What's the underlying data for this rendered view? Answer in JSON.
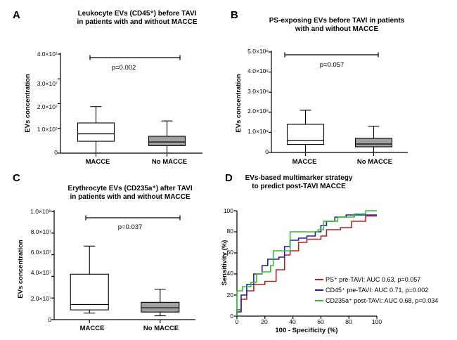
{
  "panel_letters": [
    "A",
    "B",
    "C",
    "D"
  ],
  "panelA": {
    "title_lines": [
      "Leukocyte EVs (CD45⁺) before TAVI",
      "in patients with and without MACCE"
    ],
    "ylabel": "EVs concentration",
    "ytick_labels": [
      "0",
      "1.0×10⁷",
      "2.0×10⁷",
      "3.0×10⁷",
      "4.0×10⁷"
    ],
    "pvalue": "p=0.002"
  },
  "panelB": {
    "title_lines": [
      "PS-exposing EVs before TAVI in patients",
      "with and without MACCE"
    ],
    "ylabel": "EVs concentration",
    "ytick_labels": [
      "0",
      "1.0×10⁸",
      "2.0×10⁸",
      "3.0×10⁸",
      "4.0×10⁸",
      "5.0×10⁸"
    ],
    "pvalue": "p=0.057"
  },
  "panelC": {
    "title_lines": [
      "Erythrocyte EVs (CD235a⁺) after TAVI",
      "in patients with and without MACCE"
    ],
    "ylabel": "EVs concentration",
    "ytick_labels": [
      "0",
      "2.0×10⁷",
      "4.0×10⁷",
      "6.0×10⁷",
      "8.0×10⁷",
      "1.0×10⁸"
    ],
    "pvalue": "p=0.037"
  },
  "panelD": {
    "title_lines": [
      "EVs-based multimarker strategy",
      "to predict post-TAVI MACCE"
    ],
    "xlabel": "100 - Specificity (%)",
    "ylabel": "Sensitivity (%)",
    "tick_labels": [
      "0",
      "20",
      "40",
      "60",
      "80",
      "100"
    ],
    "legend": [
      "PS⁺ pre-TAVI: AUC 0.63, p=0.057",
      "CD45⁺ pre-TAVI: AUC 0.71, p=0.002",
      "CD235a⁺ post-TAVI: AUC 0.68, p=0.034"
    ]
  },
  "colors": {
    "macce_box": "#ffffff",
    "no_macce_box": "#a0a0a0",
    "roc_ps": "#b22222",
    "roc_cd45": "#1f1fa6",
    "roc_cd235a": "#2fbf2f"
  },
  "chart_data": [
    {
      "type": "box",
      "panel": "A",
      "categories": [
        "MACCE",
        "No MACCE"
      ],
      "ylim": [
        0,
        40000000
      ],
      "boxes": [
        {
          "category": "MACCE",
          "whisker_low": 0,
          "q1": 4800000,
          "median": 7800000,
          "q3": 12200000,
          "whisker_high": 18800000
        },
        {
          "category": "No MACCE",
          "whisker_low": 0,
          "q1": 3000000,
          "median": 4500000,
          "q3": 6800000,
          "whisker_high": 13000000
        }
      ]
    },
    {
      "type": "box",
      "panel": "B",
      "categories": [
        "MACCE",
        "No MACCE"
      ],
      "ylim": [
        0,
        500000000
      ],
      "boxes": [
        {
          "category": "MACCE",
          "whisker_low": 0,
          "q1": 40000000,
          "median": 60000000,
          "q3": 140000000,
          "whisker_high": 210000000
        },
        {
          "category": "No MACCE",
          "whisker_low": 0,
          "q1": 28000000,
          "median": 42000000,
          "q3": 70000000,
          "whisker_high": 130000000
        }
      ]
    },
    {
      "type": "box",
      "panel": "C",
      "categories": [
        "MACCE",
        "No MACCE"
      ],
      "ylim": [
        0,
        100000000
      ],
      "boxes": [
        {
          "category": "MACCE",
          "whisker_low": 6000000,
          "q1": 9000000,
          "median": 14000000,
          "q3": 42000000,
          "whisker_high": 68000000
        },
        {
          "category": "No MACCE",
          "whisker_low": 3500000,
          "q1": 7000000,
          "median": 11000000,
          "q3": 16000000,
          "whisker_high": 28000000
        }
      ]
    },
    {
      "type": "line",
      "panel": "D",
      "xlabel": "100 - Specificity (%)",
      "ylabel": "Sensitivity (%)",
      "xlim": [
        0,
        100
      ],
      "ylim": [
        0,
        100
      ],
      "series": [
        {
          "name": "PS⁺ pre-TAVI: AUC 0.63, p=0.057",
          "points": [
            [
              0,
              0
            ],
            [
              0,
              6
            ],
            [
              3,
              6
            ],
            [
              3,
              16
            ],
            [
              7,
              16
            ],
            [
              7,
              24
            ],
            [
              12,
              24
            ],
            [
              12,
              30
            ],
            [
              20,
              30
            ],
            [
              20,
              33
            ],
            [
              28,
              33
            ],
            [
              28,
              44
            ],
            [
              34,
              44
            ],
            [
              34,
              58
            ],
            [
              38,
              58
            ],
            [
              38,
              62
            ],
            [
              44,
              62
            ],
            [
              44,
              70
            ],
            [
              50,
              70
            ],
            [
              50,
              73
            ],
            [
              60,
              73
            ],
            [
              60,
              76
            ],
            [
              64,
              76
            ],
            [
              64,
              82
            ],
            [
              74,
              82
            ],
            [
              74,
              84
            ],
            [
              82,
              84
            ],
            [
              82,
              90
            ],
            [
              92,
              90
            ],
            [
              92,
              95
            ],
            [
              100,
              95
            ]
          ]
        },
        {
          "name": "CD45⁺ pre-TAVI: AUC 0.71, p=0.002",
          "points": [
            [
              0,
              0
            ],
            [
              0,
              4
            ],
            [
              3,
              4
            ],
            [
              3,
              20
            ],
            [
              7,
              20
            ],
            [
              7,
              30
            ],
            [
              12,
              30
            ],
            [
              12,
              40
            ],
            [
              18,
              40
            ],
            [
              18,
              48
            ],
            [
              22,
              48
            ],
            [
              22,
              54
            ],
            [
              30,
              54
            ],
            [
              30,
              56
            ],
            [
              34,
              56
            ],
            [
              34,
              66
            ],
            [
              38,
              66
            ],
            [
              38,
              72
            ],
            [
              44,
              72
            ],
            [
              44,
              74
            ],
            [
              50,
              74
            ],
            [
              50,
              76
            ],
            [
              56,
              76
            ],
            [
              56,
              80
            ],
            [
              60,
              80
            ],
            [
              60,
              86
            ],
            [
              64,
              86
            ],
            [
              64,
              90
            ],
            [
              70,
              90
            ],
            [
              70,
              94
            ],
            [
              78,
              94
            ],
            [
              78,
              96
            ],
            [
              100,
              96
            ]
          ]
        },
        {
          "name": "CD235a⁺ post-TAVI: AUC 0.68, p=0.034",
          "points": [
            [
              0,
              0
            ],
            [
              0,
              24
            ],
            [
              4,
              24
            ],
            [
              4,
              28
            ],
            [
              10,
              28
            ],
            [
              10,
              32
            ],
            [
              14,
              32
            ],
            [
              14,
              40
            ],
            [
              18,
              40
            ],
            [
              18,
              42
            ],
            [
              24,
              42
            ],
            [
              24,
              48
            ],
            [
              26,
              48
            ],
            [
              26,
              62
            ],
            [
              38,
              62
            ],
            [
              38,
              80
            ],
            [
              58,
              80
            ],
            [
              58,
              82
            ],
            [
              62,
              82
            ],
            [
              62,
              90
            ],
            [
              72,
              90
            ],
            [
              72,
              94
            ],
            [
              84,
              94
            ],
            [
              84,
              97
            ],
            [
              92,
              97
            ],
            [
              92,
              100
            ],
            [
              100,
              100
            ]
          ]
        }
      ]
    }
  ]
}
